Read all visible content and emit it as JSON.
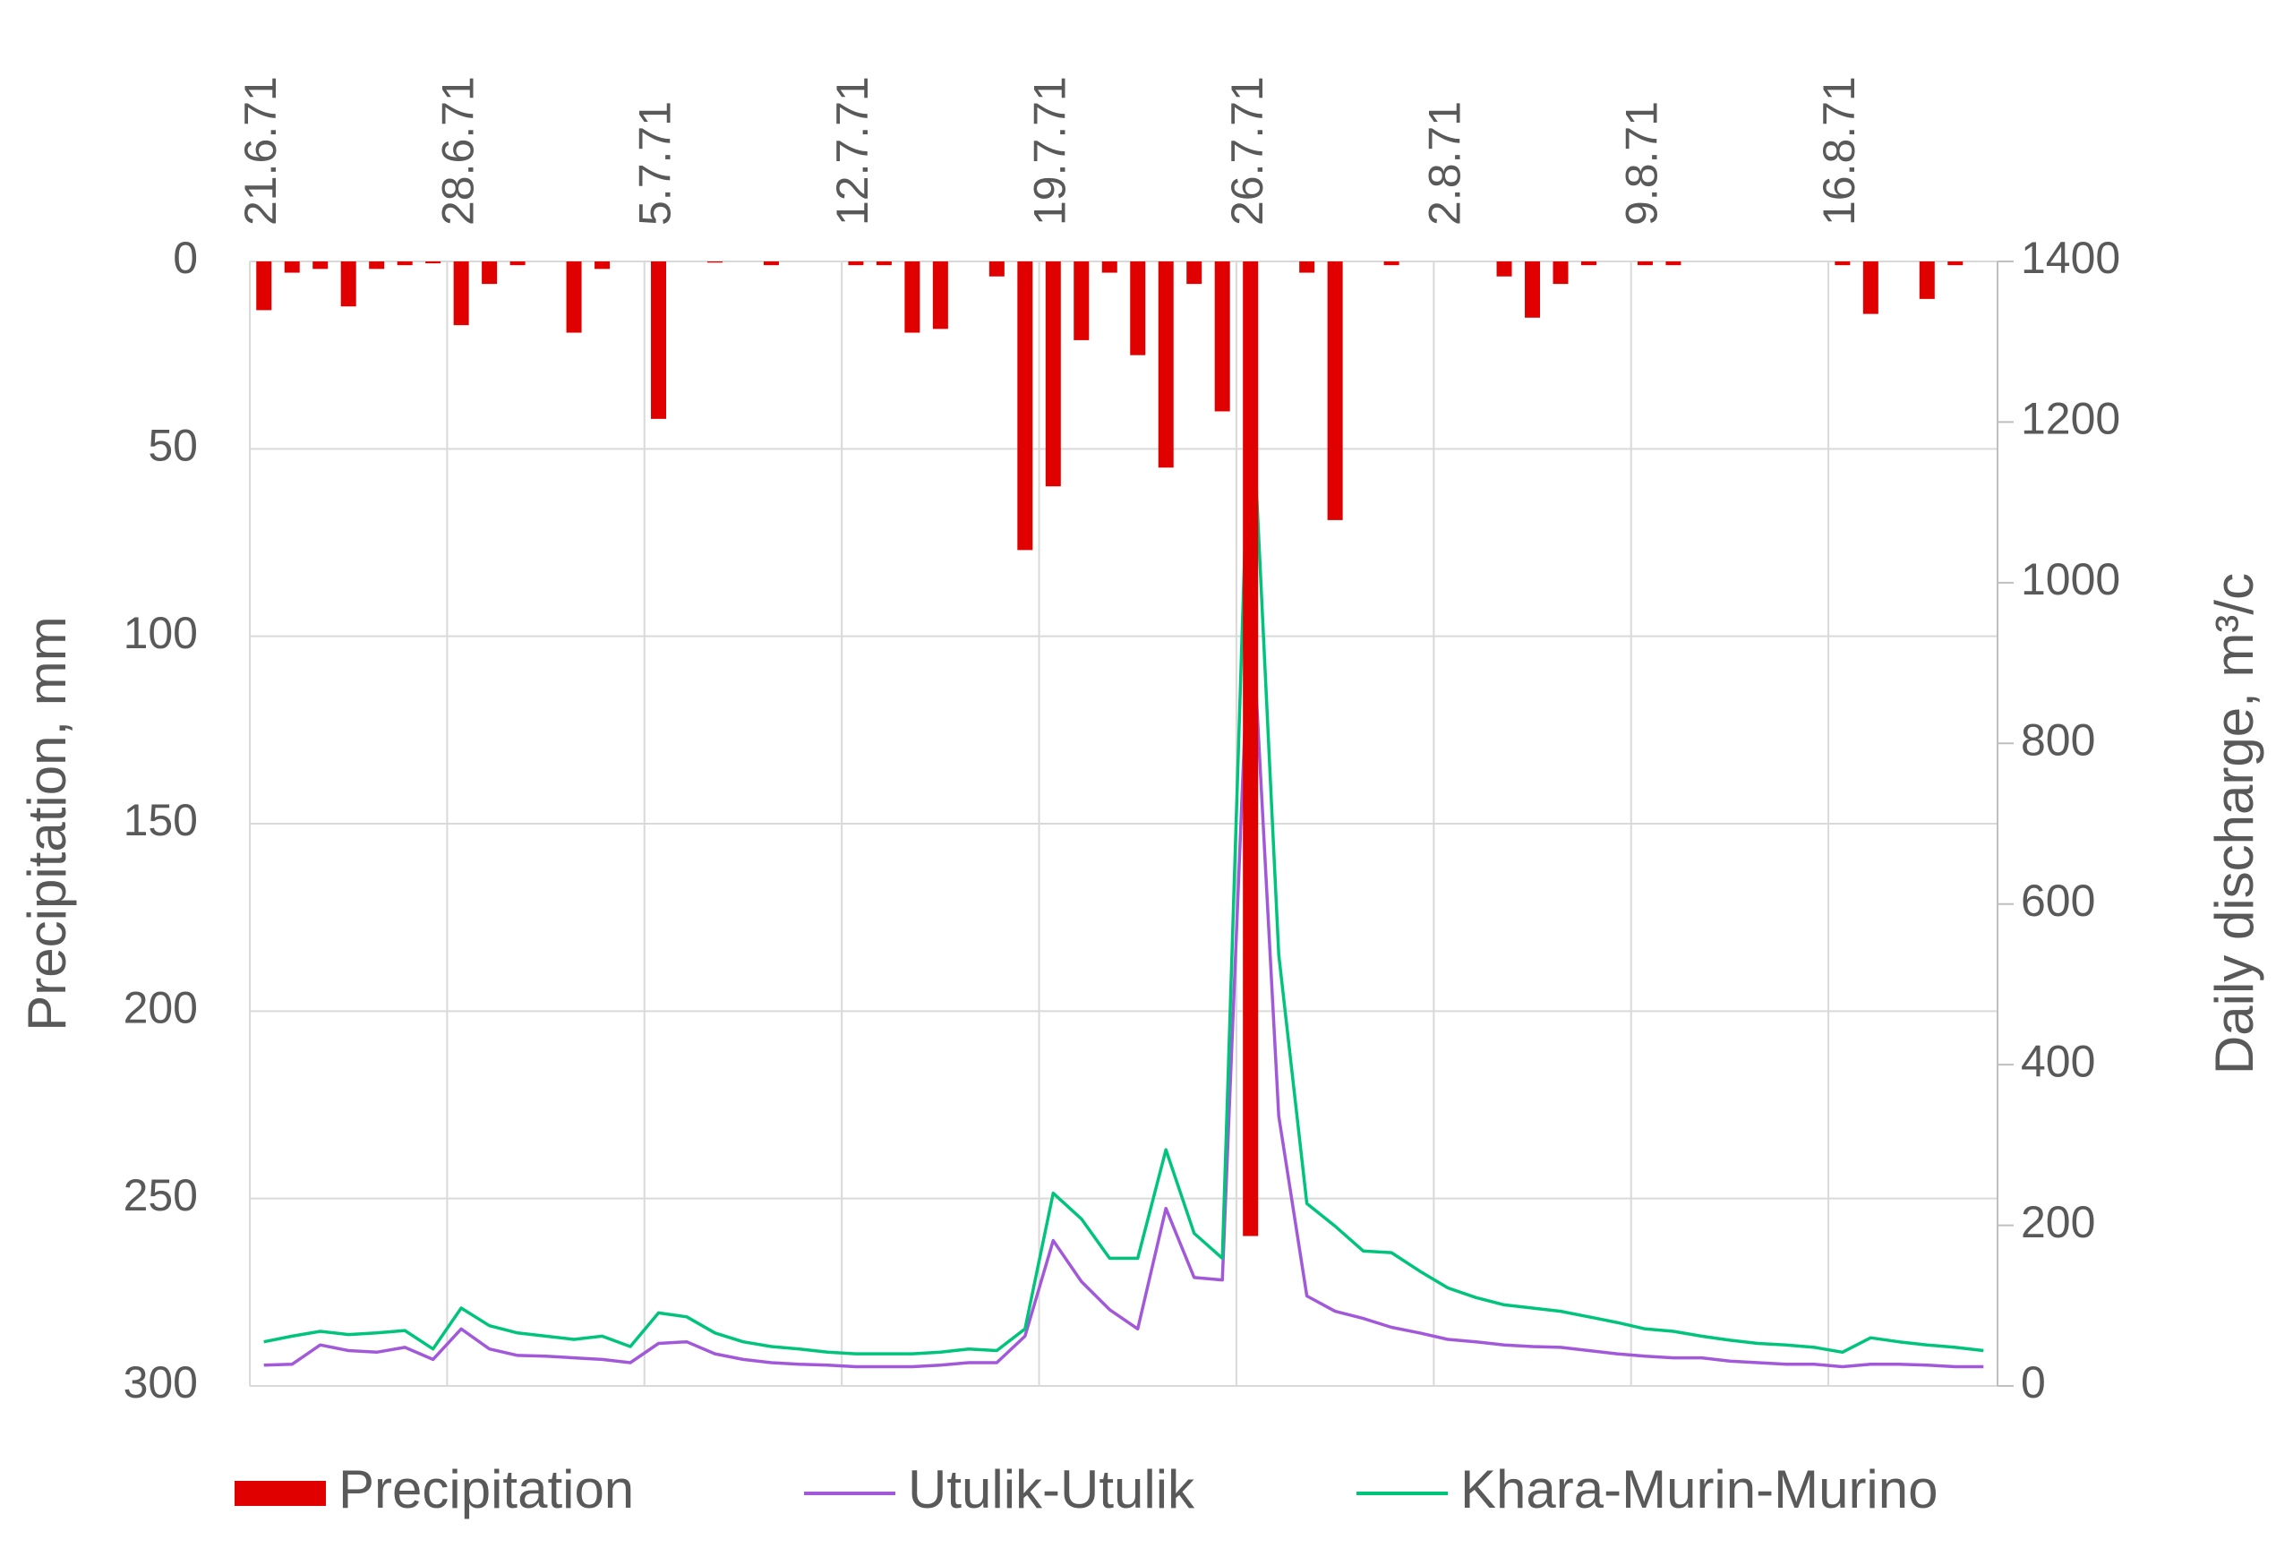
{
  "chart_data": {
    "type": "combo",
    "categories": [
      "21.6.71",
      null,
      null,
      null,
      null,
      null,
      null,
      "28.6.71",
      null,
      null,
      null,
      null,
      null,
      null,
      "5.7.71",
      null,
      null,
      null,
      null,
      null,
      null,
      "12.7.71",
      null,
      null,
      null,
      null,
      null,
      null,
      "19.7.71",
      null,
      null,
      null,
      null,
      null,
      null,
      "26.7.71",
      null,
      null,
      null,
      null,
      null,
      null,
      "2.8.71",
      null,
      null,
      null,
      null,
      null,
      null,
      "9.8.71",
      null,
      null,
      null,
      null,
      null,
      null,
      "16.8.71",
      null,
      null,
      null,
      null,
      null
    ],
    "series": [
      {
        "name": "Precipitation",
        "type": "bar",
        "axis": "y",
        "color": "#e00000",
        "values": [
          13,
          3,
          2,
          12,
          2,
          1,
          0.5,
          17,
          6,
          1,
          0,
          19,
          2,
          0,
          42,
          0,
          0.3,
          0,
          1,
          0,
          0,
          1,
          1,
          19,
          18,
          0,
          4,
          77,
          60,
          21,
          3,
          25,
          55,
          6,
          40,
          260,
          0,
          3,
          69,
          0,
          1,
          0,
          0,
          0,
          4,
          15,
          6,
          1,
          0,
          1,
          1,
          0,
          0,
          0,
          0,
          0,
          1,
          14,
          0,
          10,
          1,
          0
        ]
      },
      {
        "name": "Utulik-Utulik",
        "type": "line",
        "axis": "y2",
        "color": "#a259d9",
        "values": [
          26,
          27,
          51,
          44,
          42,
          48,
          33,
          71,
          46,
          38,
          37,
          35,
          33,
          29,
          53,
          55,
          40,
          33,
          29,
          27,
          26,
          24,
          24,
          24,
          26,
          29,
          29,
          62,
          181,
          130,
          95,
          71,
          221,
          135,
          132,
          995,
          336,
          112,
          93,
          84,
          73,
          66,
          58,
          55,
          51,
          49,
          48,
          44,
          40,
          37,
          35,
          35,
          31,
          29,
          27,
          27,
          24,
          27,
          27,
          26,
          24,
          24
        ]
      },
      {
        "name": "Khara-Murin-Murino",
        "type": "line",
        "axis": "y2",
        "color": "#00c47c",
        "values": [
          55,
          62,
          68,
          64,
          66,
          69,
          46,
          97,
          75,
          66,
          62,
          58,
          62,
          49,
          91,
          86,
          66,
          55,
          49,
          46,
          42,
          40,
          40,
          40,
          42,
          46,
          44,
          71,
          240,
          208,
          159,
          159,
          294,
          190,
          159,
          1269,
          537,
          227,
          199,
          168,
          166,
          143,
          122,
          110,
          101,
          97,
          93,
          86,
          79,
          71,
          68,
          62,
          57,
          53,
          51,
          48,
          42,
          60,
          55,
          51,
          48,
          44
        ]
      }
    ],
    "ylabel": "Precipitation, mm",
    "y2label": "Daily discharge, m³/c",
    "ylim": [
      300,
      0
    ],
    "yticks": [
      0,
      50,
      100,
      150,
      200,
      250,
      300
    ],
    "y2lim": [
      0,
      1400
    ],
    "y2ticks": [
      0,
      200,
      400,
      600,
      800,
      1000,
      1200,
      1400
    ],
    "grid": true,
    "legend": "bottom"
  }
}
